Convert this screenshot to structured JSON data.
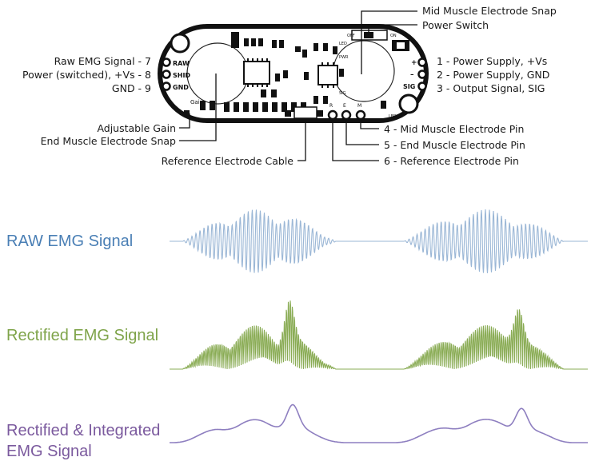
{
  "board": {
    "left_pins": [
      {
        "label": "Raw EMG Signal - 7",
        "silk": "RAW"
      },
      {
        "label": "Power (switched), +Vs - 8",
        "silk": "SHID"
      },
      {
        "label": "GND - 9",
        "silk": "GND"
      }
    ],
    "right_pins": [
      {
        "label": "1 - Power Supply, +Vs",
        "silk": "+"
      },
      {
        "label": "2 - Power Supply, GND",
        "silk": "–"
      },
      {
        "label": "3 - Output Signal, SIG",
        "silk": "SIG"
      }
    ],
    "top_callouts": [
      "Mid Muscle Electrode Snap",
      "Power Switch"
    ],
    "left_callouts": [
      "Adjustable Gain",
      "End Muscle Electrode Snap"
    ],
    "bottom_callout": "Reference Electrode Cable",
    "bottom_pins": [
      {
        "label": "4 - Mid Muscle Electrode Pin",
        "silk": "M"
      },
      {
        "label": "5 - End Muscle Electrode Pin",
        "silk": "E"
      },
      {
        "label": "6 - Reference Electrode Pin",
        "silk": "R"
      }
    ],
    "silk_labels": {
      "gain": "Gain",
      "off": "OFF",
      "on": "ON",
      "led": "LED",
      "pwr": "PWR",
      "sig": "SIG",
      "led2": "LED"
    }
  },
  "signals": [
    {
      "label": "RAW EMG Signal",
      "color": "#4a7fb5",
      "trace_color": "#9bb7d6"
    },
    {
      "label": "Rectified EMG Signal",
      "color": "#7fa44a",
      "trace_color": "#8aac55"
    },
    {
      "label": "Rectified & Integrated EMG Signal",
      "label_lines": [
        "Rectified & Integrated",
        "EMG Signal"
      ],
      "color": "#7b5a9e",
      "trace_color": "#8e7fc0"
    }
  ]
}
